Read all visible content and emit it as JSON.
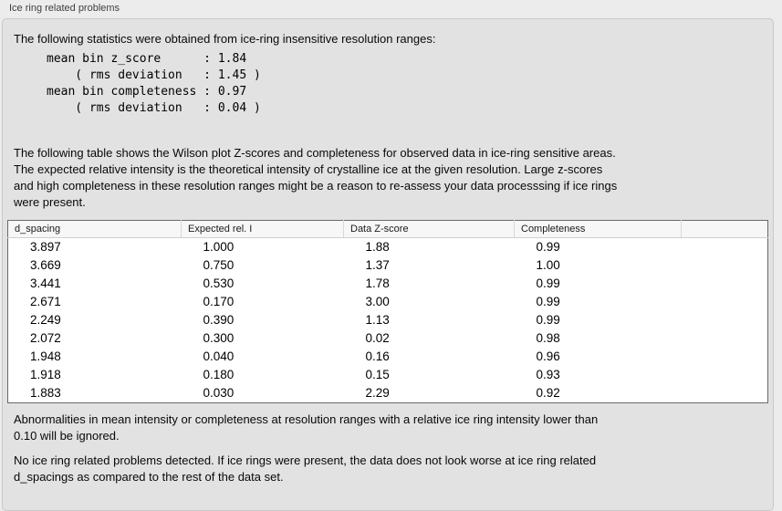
{
  "panel": {
    "title": "Ice ring related problems"
  },
  "stats": {
    "intro": "The following statistics were obtained from ice-ring insensitive resolution ranges:",
    "lines": [
      "mean bin z_score      : 1.84",
      "    ( rms deviation   : 1.45 )",
      "mean bin completeness : 0.97",
      "    ( rms deviation   : 0.04 )"
    ],
    "mean_bin_z_score": "1.84",
    "z_score_rms_deviation": "1.45",
    "mean_bin_completeness": "0.97",
    "completeness_rms_deviation": "0.04"
  },
  "table_intro": {
    "lines": [
      "The following table shows the Wilson plot Z-scores and completeness for observed data in ice-ring sensitive areas.",
      "The expected relative intensity is the theoretical intensity of crystalline ice at the given resolution. Large z-scores",
      "and high completeness in these resolution ranges might be a reason to re-assess your data processsing if ice rings",
      "were present."
    ]
  },
  "table": {
    "headers": [
      "d_spacing",
      "Expected rel. I",
      "Data Z-score",
      "Completeness",
      ""
    ],
    "rows": [
      [
        "3.897",
        "1.000",
        "1.88",
        "0.99"
      ],
      [
        "3.669",
        "0.750",
        "1.37",
        "1.00"
      ],
      [
        "3.441",
        "0.530",
        "1.78",
        "0.99"
      ],
      [
        "2.671",
        "0.170",
        "3.00",
        "0.99"
      ],
      [
        "2.249",
        "0.390",
        "1.13",
        "0.99"
      ],
      [
        "2.072",
        "0.300",
        "0.02",
        "0.98"
      ],
      [
        "1.948",
        "0.040",
        "0.16",
        "0.96"
      ],
      [
        "1.918",
        "0.180",
        "0.15",
        "0.93"
      ],
      [
        "1.883",
        "0.030",
        "2.29",
        "0.92"
      ]
    ]
  },
  "notes": {
    "ignore_lines": [
      "Abnormalities in mean intensity or completeness at resolution ranges with a relative ice ring intensity lower than",
      "0.10 will be ignored."
    ],
    "conclusion_lines": [
      "No ice ring related problems detected. If ice rings were present, the data does not look worse at ice ring related",
      "d_spacings as compared to the rest of the data set."
    ]
  },
  "colors": {
    "page_background": "#ececec",
    "panel_background": "#e2e2e2",
    "panel_border": "#c8c8c8",
    "table_border": "#696969",
    "table_header_background": "#f7f7f7",
    "table_row_background": "#ffffff",
    "text": "#000000"
  }
}
